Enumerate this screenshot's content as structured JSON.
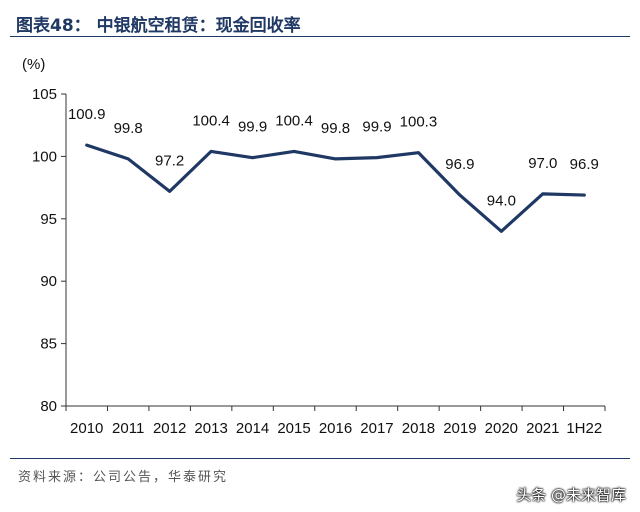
{
  "header": {
    "title": "图表48：  中银航空租赁：现金回收率"
  },
  "chart_data": {
    "type": "line",
    "title": "中银航空租赁：现金回收率",
    "ylabel": "(%)",
    "xlabel": "",
    "categories": [
      "2010",
      "2011",
      "2012",
      "2013",
      "2014",
      "2015",
      "2016",
      "2017",
      "2018",
      "2019",
      "2020",
      "2021",
      "1H22"
    ],
    "series": [
      {
        "name": "现金回收率",
        "values": [
          100.9,
          99.8,
          97.2,
          100.4,
          99.9,
          100.4,
          99.8,
          99.9,
          100.3,
          96.9,
          94.0,
          97.0,
          96.9
        ]
      }
    ],
    "data_labels": [
      "100.9",
      "99.8",
      "97.2",
      "100.4",
      "99.9",
      "100.4",
      "99.8",
      "99.9",
      "100.3",
      "96.9",
      "94.0",
      "97.0",
      "96.9"
    ],
    "ylim": [
      80,
      105
    ],
    "yticks": [
      80,
      85,
      90,
      95,
      100,
      105
    ],
    "grid": false,
    "line_color": "#1f3864"
  },
  "footer": {
    "source": "资料来源：公司公告，华泰研究",
    "watermark": "头条 @未来智库"
  }
}
